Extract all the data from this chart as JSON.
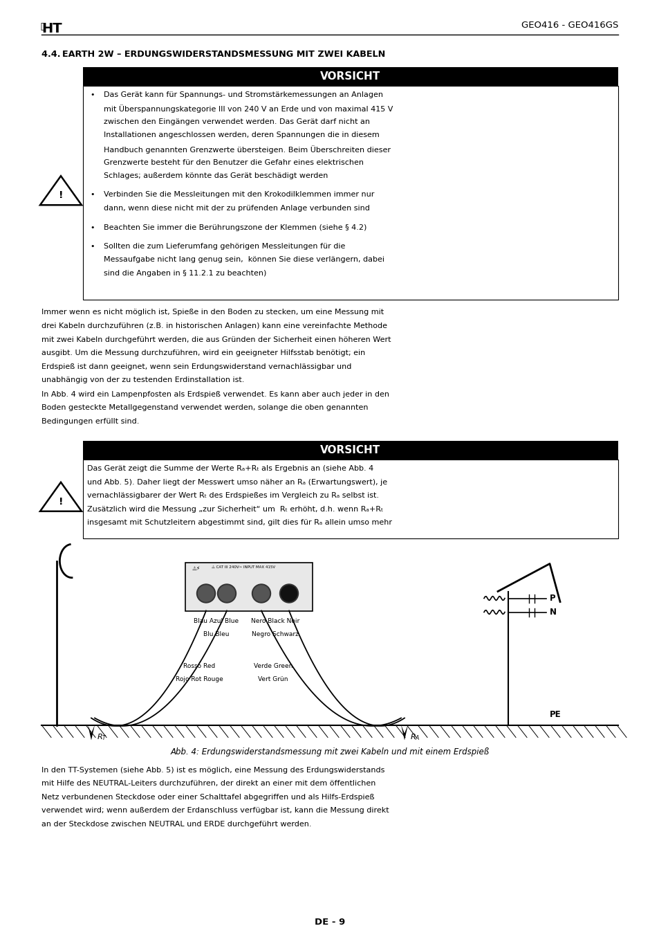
{
  "page_width": 9.54,
  "page_height": 13.51,
  "dpi": 100,
  "bg_color": "#ffffff",
  "header_right": "GEO416 - GEO416GS",
  "section_title": "4.4. EARTH 2W – ERDUNGSWIDERSTANDSMESSUNG MIT ZWEI KABELN",
  "vorsicht_label": "VORSICHT",
  "bullet1_lines": [
    "Das Gerät kann für Spannungs- und Stromstärkemessungen an Anlagen",
    "mit Überspannungskategorie III von 240 V an Erde und von maximal 415 V",
    "zwischen den Eingängen verwendet werden. Das Gerät darf nicht an",
    "Installationen angeschlossen werden, deren Spannungen die in diesem",
    "Handbuch genannten Grenzwerte übersteigen. Beim Überschreiten dieser",
    "Grenzwerte besteht für den Benutzer die Gefahr eines elektrischen",
    "Schlages; außerdem könnte das Gerät beschädigt werden"
  ],
  "bullet2_lines": [
    "Verbinden Sie die Messleitungen mit den Krokodilklemmen immer nur",
    "dann, wenn diese nicht mit der zu prüfenden Anlage verbunden sind"
  ],
  "bullet3": "Beachten Sie immer die Berührungszone der Klemmen (siehe § 4.2)",
  "bullet4_lines": [
    "Sollten die zum Lieferumfang gehörigen Messleitungen für die",
    "Messaufgabe nicht lang genug sein,  können Sie diese verlängern, dabei",
    "sind die Angaben in § 11.2.1 zu beachten)"
  ],
  "para1_lines": [
    "Immer wenn es nicht möglich ist, Spieße in den Boden zu stecken, um eine Messung mit",
    "drei Kabeln durchzuführen (z.B. in historischen Anlagen) kann eine vereinfachte Methode",
    "mit zwei Kabeln durchgeführt werden, die aus Gründen der Sicherheit einen höheren Wert",
    "ausgibt. Um die Messung durchzuführen, wird ein geeigneter Hilfsstab benötigt; ein",
    "Erdspieß ist dann geeignet, wenn sein Erdungswiderstand vernachlässigbar und",
    "unabhängig von der zu testenden Erdinstallation ist."
  ],
  "para2_lines": [
    "In Abb. 4 wird ein Lampenpfosten als Erdspieß verwendet. Es kann aber auch jeder in den",
    "Boden gesteckte Metallgegenstand verwendet werden, solange die oben genannten",
    "Bedingungen erfüllt sind."
  ],
  "vorsicht2_lines": [
    "Das Gerät zeigt die Summe der Werte Rₐ+Rₜ als Ergebnis an (siehe Abb. 4",
    "und Abb. 5). Daher liegt der Messwert umso näher an Rₐ (Erwartungswert), je",
    "vernachlässigbarer der Wert Rₜ des Erdspießes im Vergleich zu Rₐ selbst ist.",
    "Zusätzlich wird die Messung „zur Sicherheit“ um  Rₜ erhöht, d.h. wenn Rₐ+Rₜ",
    "insgesamt mit Schutzleitern abgestimmt sind, gilt dies für Rₐ allein umso mehr"
  ],
  "caption": "Abb. 4: Erdungswiderstandsmessung mit zwei Kabeln und mit einem Erdspieß",
  "para3_lines": [
    "In den TT-Systemen (siehe Abb. 5) ist es möglich, eine Messung des Erdungswiderstands",
    "mit Hilfe des NEUTRAL-Leiters durchzuführen, der direkt an einer mit dem öffentlichen",
    "Netz verbundenen Steckdose oder einer Schalttafel abgegriffen und als Hilfs-Erdspieß",
    "verwendet wird; wenn außerdem der Erdanschluss verfügbar ist, kann die Messung direkt",
    "an der Steckdose zwischen NEUTRAL und ERDE durchgeführt werden."
  ],
  "footer": "DE - 9",
  "lbl_blau": [
    "Blau Azul Blue",
    "Blu Bleu"
  ],
  "lbl_nero": [
    "Nero Black Noir",
    "Negro Schwarz"
  ],
  "lbl_rosso": [
    "Rosso Red",
    "Rojo Rot Rouge"
  ],
  "lbl_verde": [
    "Verde Green",
    "Vert Grün"
  ]
}
